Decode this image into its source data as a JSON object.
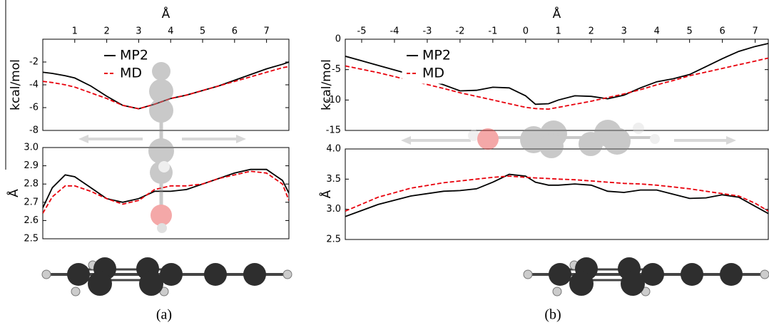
{
  "chart_data": [
    {
      "type": "line",
      "xlabel": "Å",
      "ylabel": "kcal/mol",
      "caption": "(a)",
      "legend": true,
      "x": [
        0,
        0.3,
        0.7,
        1,
        1.5,
        2,
        2.5,
        3,
        3.5,
        4,
        4.5,
        5,
        5.5,
        6,
        6.5,
        7,
        7.5,
        7.7
      ],
      "xlim": [
        0,
        7.7
      ],
      "xticks": [
        1,
        2,
        3,
        4,
        5,
        6,
        7
      ],
      "ylim": [
        -8,
        0
      ],
      "yticks": [
        -2,
        -4,
        -6,
        -8
      ],
      "series": [
        {
          "name": "MP2",
          "color": "#000000",
          "dashed": false,
          "values": [
            -2.9,
            -3.0,
            -3.2,
            -3.4,
            -4.1,
            -5.0,
            -5.8,
            -6.1,
            -5.7,
            -5.2,
            -4.9,
            -4.5,
            -4.1,
            -3.6,
            -3.1,
            -2.6,
            -2.2,
            -2.0
          ]
        },
        {
          "name": "MD",
          "color": "#e8000b",
          "dashed": true,
          "values": [
            -3.7,
            -3.8,
            -4.0,
            -4.2,
            -4.7,
            -5.2,
            -5.8,
            -6.1,
            -5.7,
            -5.2,
            -4.9,
            -4.5,
            -4.1,
            -3.7,
            -3.3,
            -2.9,
            -2.5,
            -2.4
          ]
        }
      ]
    },
    {
      "type": "line",
      "ylabel": "Å",
      "x": [
        0,
        0.3,
        0.7,
        1,
        1.5,
        2,
        2.5,
        3,
        3.5,
        4,
        4.5,
        5,
        5.5,
        6,
        6.5,
        7,
        7.5,
        7.7
      ],
      "xlim": [
        0,
        7.7
      ],
      "ylim": [
        2.5,
        3.0
      ],
      "yticks": [
        {
          "value": 3,
          "label": "3.0"
        },
        2.9,
        2.8,
        2.7,
        2.6,
        2.5
      ],
      "series": [
        {
          "color": "#000000",
          "dashed": false,
          "values": [
            2.67,
            2.78,
            2.85,
            2.84,
            2.78,
            2.72,
            2.7,
            2.72,
            2.76,
            2.76,
            2.77,
            2.8,
            2.83,
            2.86,
            2.88,
            2.88,
            2.82,
            2.75
          ]
        },
        {
          "color": "#e8000b",
          "dashed": true,
          "values": [
            2.64,
            2.73,
            2.79,
            2.79,
            2.76,
            2.72,
            2.69,
            2.71,
            2.77,
            2.79,
            2.79,
            2.8,
            2.83,
            2.85,
            2.87,
            2.86,
            2.8,
            2.71
          ]
        }
      ]
    },
    {
      "type": "line",
      "xlabel": "Å",
      "ylabel": "kcal/mol",
      "caption": "(b)",
      "legend": true,
      "x": [
        -5.5,
        -4.5,
        -3.5,
        -2.5,
        -2,
        -1.5,
        -1,
        -0.5,
        0,
        0.3,
        0.7,
        1,
        1.5,
        2,
        2.5,
        3,
        3.5,
        4,
        4.5,
        5,
        5.5,
        6,
        6.5,
        7,
        7.4
      ],
      "xlim": [
        -5.5,
        7.4
      ],
      "xticks": [
        -5,
        -4,
        -3,
        -2,
        -1,
        0,
        1,
        2,
        3,
        4,
        5,
        6,
        7
      ],
      "ylim": [
        -15,
        0
      ],
      "yticks": [
        0,
        -5,
        -10,
        -15
      ],
      "series": [
        {
          "name": "MP2",
          "color": "#000000",
          "dashed": false,
          "values": [
            -2.8,
            -4.3,
            -5.8,
            -7.5,
            -8.5,
            -8.4,
            -7.9,
            -8.0,
            -9.3,
            -10.7,
            -10.6,
            -10.0,
            -9.3,
            -9.4,
            -9.8,
            -9.2,
            -8.0,
            -7.0,
            -6.5,
            -5.8,
            -4.5,
            -3.2,
            -2.0,
            -1.2,
            -0.7
          ]
        },
        {
          "name": "MD",
          "color": "#e8000b",
          "dashed": true,
          "values": [
            -4.4,
            -5.5,
            -6.8,
            -8.1,
            -8.8,
            -9.4,
            -10.0,
            -10.6,
            -11.2,
            -11.4,
            -11.5,
            -11.2,
            -10.7,
            -10.2,
            -9.6,
            -9.0,
            -8.3,
            -7.5,
            -6.8,
            -6.0,
            -5.4,
            -4.8,
            -4.2,
            -3.6,
            -3.1
          ]
        }
      ]
    },
    {
      "type": "line",
      "ylabel": "Å",
      "x": [
        -5.5,
        -4.5,
        -3.5,
        -2.5,
        -2,
        -1.5,
        -1,
        -0.5,
        0,
        0.3,
        0.7,
        1,
        1.5,
        2,
        2.5,
        3,
        3.5,
        4,
        4.5,
        5,
        5.5,
        6,
        6.5,
        7,
        7.4
      ],
      "xlim": [
        -5.5,
        7.4
      ],
      "ylim": [
        2.5,
        4.0
      ],
      "yticks": [
        {
          "value": 4,
          "label": "4.0"
        },
        3.5,
        {
          "value": 3,
          "label": "3.0"
        },
        2.5
      ],
      "series": [
        {
          "color": "#000000",
          "dashed": false,
          "values": [
            2.88,
            3.08,
            3.22,
            3.3,
            3.31,
            3.34,
            3.45,
            3.58,
            3.55,
            3.45,
            3.4,
            3.4,
            3.42,
            3.4,
            3.3,
            3.28,
            3.32,
            3.32,
            3.25,
            3.18,
            3.19,
            3.24,
            3.2,
            3.05,
            2.93
          ]
        },
        {
          "color": "#e8000b",
          "dashed": true,
          "values": [
            2.97,
            3.2,
            3.35,
            3.44,
            3.47,
            3.5,
            3.53,
            3.55,
            3.53,
            3.52,
            3.51,
            3.5,
            3.49,
            3.47,
            3.45,
            3.43,
            3.42,
            3.4,
            3.37,
            3.34,
            3.3,
            3.26,
            3.22,
            3.1,
            2.97
          ]
        }
      ]
    }
  ]
}
